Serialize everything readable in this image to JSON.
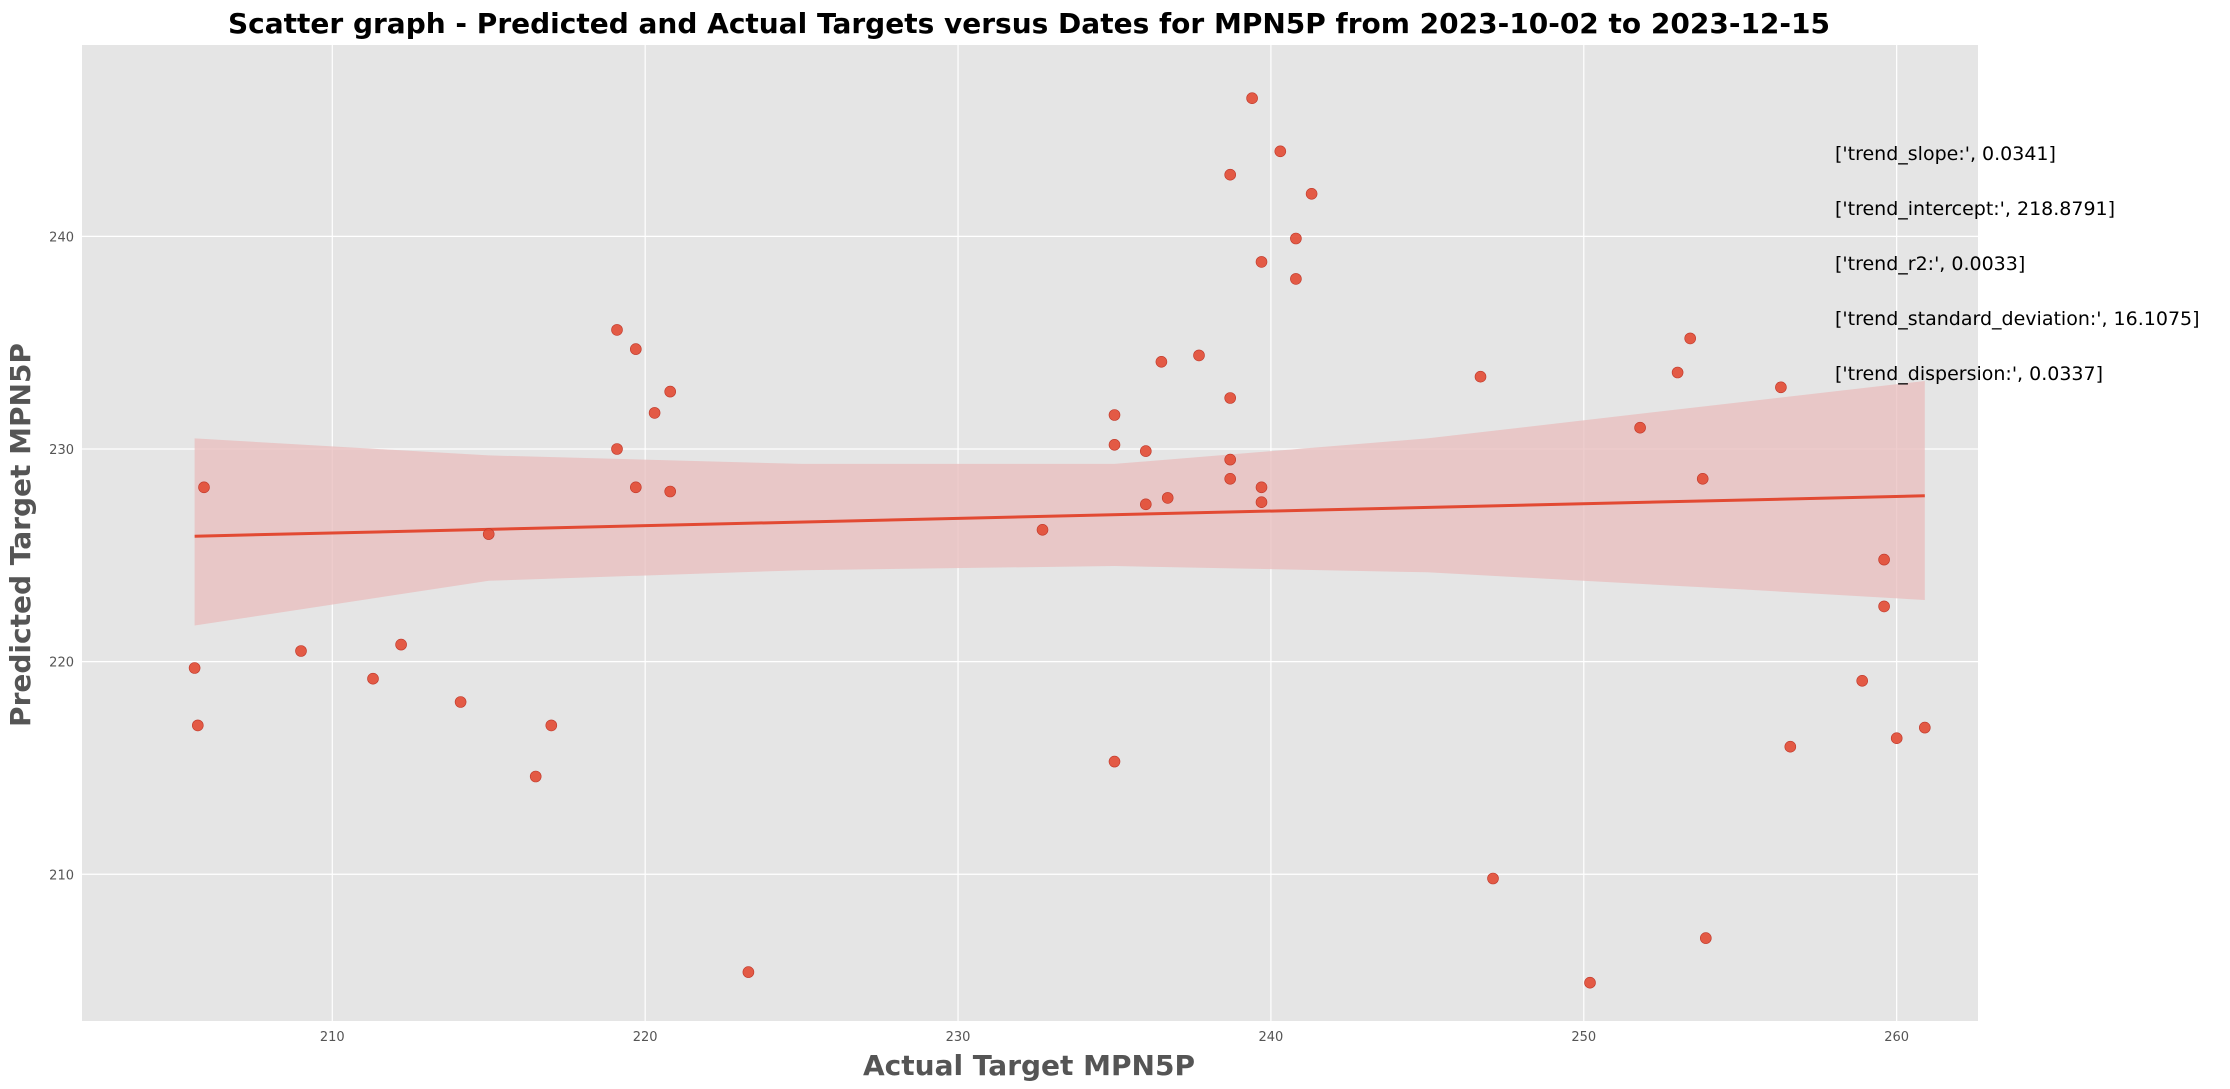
{
  "chart_data": {
    "type": "scatter",
    "title": "Scatter graph - Predicted and Actual Targets versus Dates for MPN5P from 2023-10-02 to 2023-12-15",
    "xlabel": "Actual Target MPN5P",
    "ylabel": "Predicted Target MPN5P",
    "xlim": [
      202.0,
      262.6
    ],
    "ylim": [
      203.1,
      249.0
    ],
    "x_ticks": [
      210,
      220,
      230,
      240,
      250,
      260
    ],
    "y_ticks": [
      210,
      220,
      230,
      240
    ],
    "grid": true,
    "colors": {
      "background": "#e5e5e5",
      "grid": "#ffffff",
      "points": "#e24a33",
      "trend": "#e24a33",
      "band": "#e8bcbc"
    },
    "series": [
      {
        "values_xy": [
          [
            205.6,
            219.7
          ],
          [
            205.7,
            217.0
          ],
          [
            205.9,
            228.2
          ],
          [
            209.0,
            220.5
          ],
          [
            211.3,
            219.2
          ],
          [
            212.2,
            220.8
          ],
          [
            214.1,
            218.1
          ],
          [
            215.0,
            226.0
          ],
          [
            216.5,
            214.6
          ],
          [
            217.0,
            217.0
          ],
          [
            219.1,
            235.6
          ],
          [
            219.1,
            230.0
          ],
          [
            219.7,
            234.7
          ],
          [
            219.7,
            228.2
          ],
          [
            220.3,
            231.7
          ],
          [
            220.8,
            232.7
          ],
          [
            220.8,
            228.0
          ],
          [
            223.3,
            205.4
          ],
          [
            232.7,
            226.2
          ],
          [
            235.0,
            231.6
          ],
          [
            235.0,
            230.2
          ],
          [
            235.0,
            215.3
          ],
          [
            236.0,
            229.9
          ],
          [
            236.0,
            227.4
          ],
          [
            236.5,
            234.1
          ],
          [
            236.7,
            227.7
          ],
          [
            237.7,
            234.4
          ],
          [
            238.7,
            242.9
          ],
          [
            238.7,
            232.4
          ],
          [
            238.7,
            229.5
          ],
          [
            238.7,
            228.6
          ],
          [
            239.4,
            246.5
          ],
          [
            239.7,
            238.8
          ],
          [
            239.7,
            228.2
          ],
          [
            239.7,
            227.5
          ],
          [
            240.3,
            244.0
          ],
          [
            240.8,
            239.9
          ],
          [
            240.8,
            238.0
          ],
          [
            241.3,
            242.0
          ],
          [
            246.7,
            233.4
          ],
          [
            247.1,
            209.8
          ],
          [
            250.2,
            204.9
          ],
          [
            251.8,
            231.0
          ],
          [
            253.0,
            233.6
          ],
          [
            253.4,
            235.2
          ],
          [
            253.8,
            228.6
          ],
          [
            253.9,
            207.0
          ],
          [
            256.3,
            232.9
          ],
          [
            256.6,
            216.0
          ],
          [
            258.9,
            219.1
          ],
          [
            259.6,
            224.8
          ],
          [
            259.6,
            222.6
          ],
          [
            260.0,
            216.4
          ],
          [
            260.9,
            216.9
          ]
        ]
      }
    ],
    "trend": {
      "x_range": [
        205.6,
        260.9
      ],
      "y_range": [
        225.9,
        227.8
      ],
      "band_upper": [
        [
          205.6,
          230.5
        ],
        [
          215,
          229.7
        ],
        [
          225,
          229.3
        ],
        [
          235,
          229.3
        ],
        [
          245,
          230.5
        ],
        [
          255,
          232.2
        ],
        [
          260.9,
          233.2
        ]
      ],
      "band_lower": [
        [
          205.6,
          221.7
        ],
        [
          215,
          223.8
        ],
        [
          225,
          224.3
        ],
        [
          235,
          224.5
        ],
        [
          245,
          224.2
        ],
        [
          255,
          223.4
        ],
        [
          260.9,
          222.9
        ]
      ]
    },
    "annotations": [
      "['trend_slope:', 0.0341]",
      "['trend_intercept:', 218.8791]",
      "['trend_r2:', 0.0033]",
      "['trend_standard_deviation:', 16.1075]",
      "['trend_dispersion:', 0.0337]"
    ]
  }
}
